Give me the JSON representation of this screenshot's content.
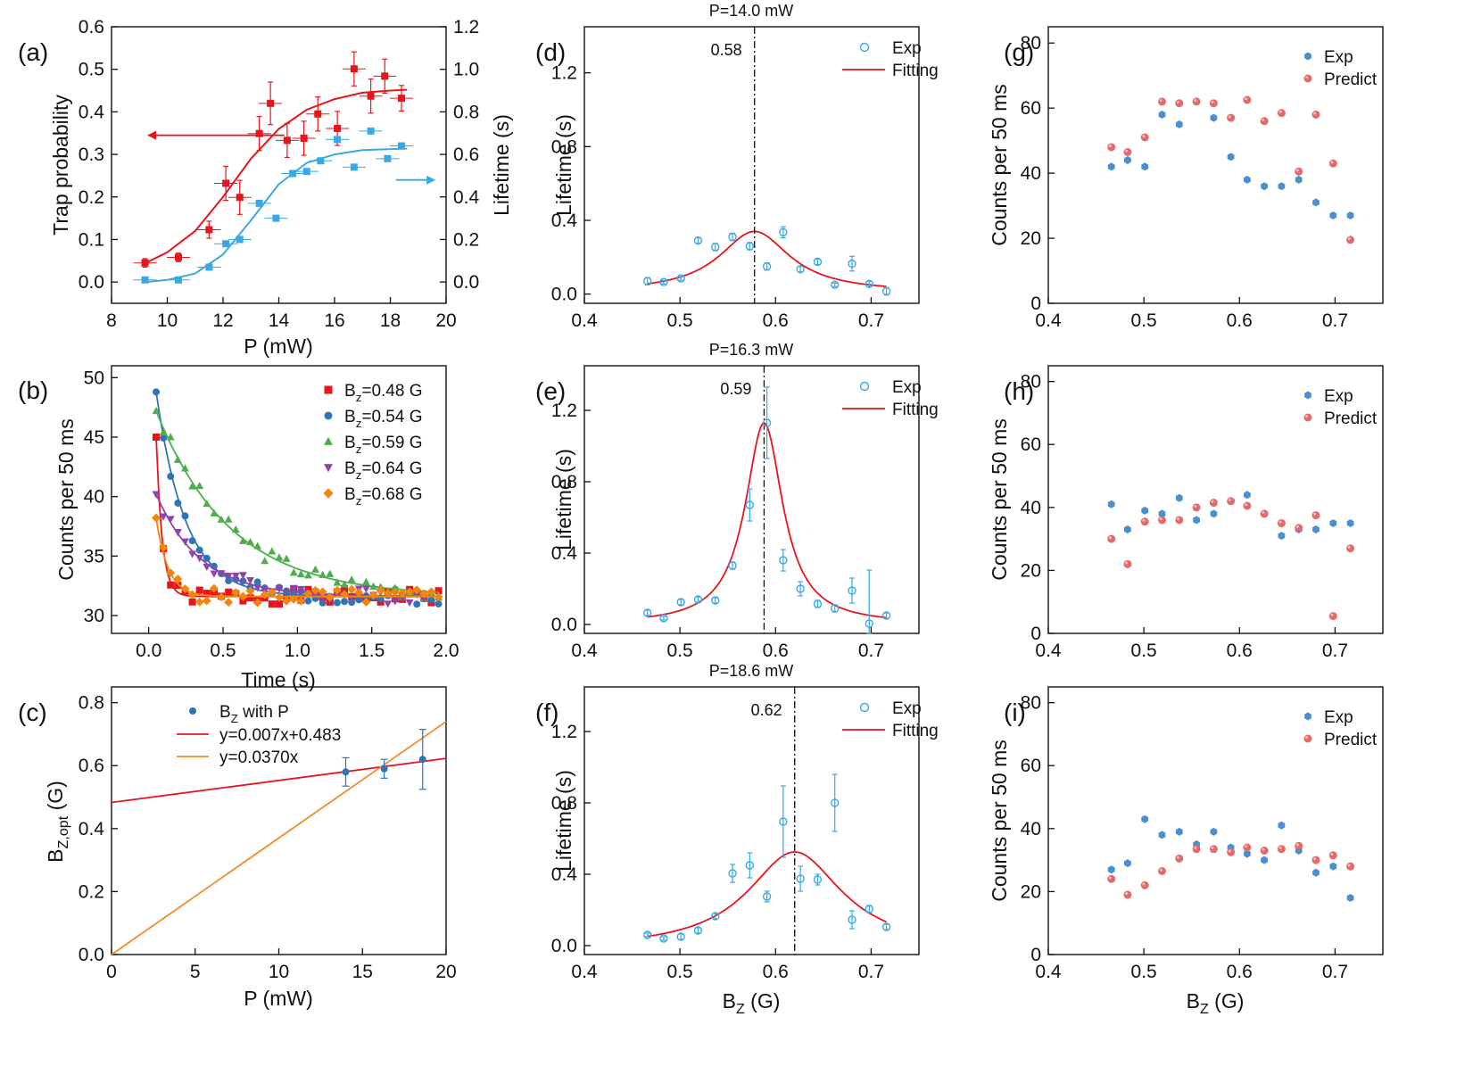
{
  "chart_data": [
    {
      "id": "a",
      "type": "scatter",
      "panel_label": "(a)",
      "xlabel": "P (mW)",
      "ylabel": "Trap probability",
      "y2label": "Lifetime (s)",
      "xlim": [
        8,
        20
      ],
      "ylim": [
        -0.05,
        0.6
      ],
      "y2lim": [
        -0.1,
        1.2
      ],
      "xticks": [
        8,
        10,
        12,
        14,
        16,
        18,
        20
      ],
      "yticks": [
        "0.0",
        "0.1",
        "0.2",
        "0.3",
        "0.4",
        "0.5",
        "0.6"
      ],
      "y2ticks": [
        "0.0",
        "0.2",
        "0.4",
        "0.6",
        "0.8",
        "1.0",
        "1.2"
      ],
      "series": [
        {
          "name": "Trap probability",
          "axis": "left",
          "color": "#e8141b",
          "marker": "square",
          "x": [
            9.2,
            10.4,
            11.5,
            12.1,
            12.6,
            13.3,
            13.7,
            14.3,
            14.9,
            15.4,
            16.1,
            16.7,
            17.3,
            17.8,
            18.4
          ],
          "y": [
            0.045,
            0.058,
            0.123,
            0.232,
            0.199,
            0.349,
            0.42,
            0.333,
            0.338,
            0.395,
            0.361,
            0.501,
            0.437,
            0.484,
            0.432
          ],
          "yerr": [
            0.01,
            0.01,
            0.02,
            0.04,
            0.04,
            0.04,
            0.05,
            0.04,
            0.04,
            0.04,
            0.04,
            0.04,
            0.04,
            0.04,
            0.03
          ],
          "fit_x": [
            9.2,
            10.0,
            11.0,
            12.0,
            13.0,
            14.0,
            15.0,
            16.0,
            17.0,
            18.0,
            18.6
          ],
          "fit_y": [
            0.044,
            0.07,
            0.12,
            0.2,
            0.29,
            0.36,
            0.405,
            0.43,
            0.445,
            0.45,
            0.452
          ]
        },
        {
          "name": "Lifetime",
          "axis": "right",
          "color": "#39a9e6",
          "marker": "square",
          "x": [
            9.2,
            10.4,
            11.5,
            12.1,
            12.6,
            13.3,
            13.9,
            14.5,
            15.0,
            15.5,
            16.1,
            16.7,
            17.3,
            17.9,
            18.4
          ],
          "y": [
            0.01,
            0.01,
            0.07,
            0.18,
            0.2,
            0.37,
            0.3,
            0.51,
            0.52,
            0.57,
            0.67,
            0.54,
            0.71,
            0.58,
            0.64
          ],
          "fit_x": [
            9.2,
            10.0,
            11.0,
            12.0,
            13.0,
            14.0,
            15.0,
            16.0,
            17.0,
            18.0,
            18.6
          ],
          "fit_y": [
            0.0,
            0.01,
            0.04,
            0.13,
            0.29,
            0.46,
            0.56,
            0.6,
            0.62,
            0.625,
            0.627
          ]
        }
      ]
    },
    {
      "id": "b",
      "type": "scatter",
      "panel_label": "(b)",
      "xlabel": "Time (s)",
      "ylabel": "Counts per 50 ms",
      "xlim": [
        -0.25,
        2.0
      ],
      "ylim": [
        28.5,
        51
      ],
      "xticks": [
        "0.0",
        "0.5",
        "1.0",
        "1.5",
        "2.0"
      ],
      "yticks": [
        30,
        35,
        40,
        45,
        50
      ],
      "series": [
        {
          "name": "B",
          "sub": "z",
          "suffix": "=0.48 G",
          "color": "#e8141b",
          "marker": "square",
          "start": 45.0,
          "tau": 0.04,
          "seed": 1
        },
        {
          "name": "B",
          "sub": "z",
          "suffix": "=0.54 G",
          "color": "#2f75b6",
          "marker": "circle",
          "start": 48.8,
          "tau": 0.2,
          "seed": 2
        },
        {
          "name": "B",
          "sub": "z",
          "suffix": "=0.59 G",
          "color": "#4cae4c",
          "marker": "triangle",
          "start": 47.2,
          "tau": 0.5,
          "seed": 3
        },
        {
          "name": "B",
          "sub": "z",
          "suffix": "=0.64 G",
          "color": "#8e44ad",
          "marker": "tridown",
          "start": 40.2,
          "tau": 0.3,
          "seed": 4
        },
        {
          "name": "B",
          "sub": "z",
          "suffix": "=0.68 G",
          "color": "#f5860d",
          "marker": "diamond",
          "start": 38.2,
          "tau": 0.08,
          "seed": 5
        }
      ],
      "asymptote": 31.6
    },
    {
      "id": "c",
      "type": "line",
      "panel_label": "(c)",
      "xlabel": "P (mW)",
      "ylabel": "B",
      "ylabel_sub": "Z,opt",
      "ylabel_suffix": " (G)",
      "xlim": [
        0,
        20
      ],
      "ylim": [
        0.0,
        0.85
      ],
      "xticks": [
        0,
        5,
        10,
        15,
        20
      ],
      "yticks": [
        "0.0",
        "0.2",
        "0.4",
        "0.6",
        "0.8"
      ],
      "points": {
        "name": "B",
        "sub": "Z",
        "suffix": " with P",
        "x": [
          14.0,
          16.3,
          18.6
        ],
        "y": [
          0.58,
          0.59,
          0.62
        ],
        "yerr": [
          0.045,
          0.03,
          0.095
        ],
        "color": "#2f75b6"
      },
      "lines": [
        {
          "name": "y=0.007x+0.483",
          "slope": 0.007,
          "intercept": 0.483,
          "color": "#e8141b"
        },
        {
          "name": "y=0.0370x",
          "slope": 0.037,
          "intercept": 0,
          "color": "#f58b2a"
        }
      ]
    },
    {
      "id": "d",
      "type": "scatter",
      "panel_label": "(d)",
      "title": "P=14.0 mW",
      "xlabel": "",
      "ylabel": "Lifetime (s)",
      "xlim": [
        0.4,
        0.75
      ],
      "ylim": [
        -0.05,
        1.45
      ],
      "xticks": [
        "0.4",
        "0.5",
        "0.6",
        "0.7"
      ],
      "yticks": [
        "0.0",
        "0.4",
        "0.8",
        "1.2"
      ],
      "vline": 0.578,
      "vline_label": "0.58",
      "legend": [
        "Exp",
        "Fitting"
      ],
      "x": [
        0.466,
        0.483,
        0.501,
        0.519,
        0.537,
        0.555,
        0.573,
        0.591,
        0.608,
        0.626,
        0.644,
        0.662,
        0.68,
        0.698,
        0.716
      ],
      "y": [
        0.07,
        0.065,
        0.085,
        0.29,
        0.255,
        0.31,
        0.26,
        0.15,
        0.335,
        0.135,
        0.175,
        0.05,
        0.165,
        0.055,
        0.015
      ],
      "yerr": [
        0.02,
        0.01,
        0.01,
        0.015,
        0.02,
        0.02,
        0.02,
        0.02,
        0.03,
        0.015,
        0.015,
        0.01,
        0.04,
        0.015,
        0.02
      ],
      "fit": {
        "x0": 0.578,
        "gamma": 0.045,
        "amp": 0.33,
        "base": 0.01
      }
    },
    {
      "id": "e",
      "type": "scatter",
      "panel_label": "(e)",
      "title": "P=16.3 mW",
      "xlabel": "",
      "ylabel": "Lifetime (s)",
      "xlim": [
        0.4,
        0.75
      ],
      "ylim": [
        -0.05,
        1.45
      ],
      "xticks": [
        "0.4",
        "0.5",
        "0.6",
        "0.7"
      ],
      "yticks": [
        "0.0",
        "0.4",
        "0.8",
        "1.2"
      ],
      "vline": 0.588,
      "vline_label": "0.59",
      "legend": [
        "Exp",
        "Fitting"
      ],
      "x": [
        0.466,
        0.483,
        0.501,
        0.519,
        0.537,
        0.555,
        0.573,
        0.591,
        0.608,
        0.626,
        0.644,
        0.662,
        0.68,
        0.698,
        0.716
      ],
      "y": [
        0.065,
        0.035,
        0.125,
        0.14,
        0.135,
        0.33,
        0.67,
        1.13,
        0.36,
        0.2,
        0.115,
        0.09,
        0.19,
        0.005,
        0.05
      ],
      "yerr": [
        0.015,
        0.01,
        0.015,
        0.015,
        0.015,
        0.02,
        0.09,
        0.2,
        0.06,
        0.04,
        0.02,
        0.02,
        0.07,
        0.3,
        0.015
      ],
      "fit": {
        "x0": 0.588,
        "gamma": 0.024,
        "amp": 1.13,
        "base": 0.0
      }
    },
    {
      "id": "f",
      "type": "scatter",
      "panel_label": "(f)",
      "title": "P=18.6 mW",
      "xlabel": "B",
      "xlabel_sub": "Z",
      "xlabel_suffix": " (G)",
      "ylabel": "Lifetime (s)",
      "xlim": [
        0.4,
        0.75
      ],
      "ylim": [
        -0.05,
        1.45
      ],
      "xticks": [
        "0.4",
        "0.5",
        "0.6",
        "0.7"
      ],
      "yticks": [
        "0.0",
        "0.4",
        "0.8",
        "1.2"
      ],
      "vline": 0.62,
      "vline_label": "0.62",
      "legend": [
        "Exp",
        "Fitting"
      ],
      "x": [
        0.466,
        0.483,
        0.501,
        0.519,
        0.537,
        0.555,
        0.573,
        0.591,
        0.608,
        0.626,
        0.644,
        0.662,
        0.68,
        0.698,
        0.716
      ],
      "y": [
        0.06,
        0.04,
        0.05,
        0.085,
        0.165,
        0.405,
        0.45,
        0.275,
        0.695,
        0.375,
        0.37,
        0.8,
        0.145,
        0.205,
        0.105
      ],
      "yerr": [
        0.01,
        0.01,
        0.015,
        0.015,
        0.015,
        0.05,
        0.07,
        0.03,
        0.2,
        0.07,
        0.03,
        0.16,
        0.05,
        0.02,
        0.015
      ],
      "fit": {
        "x0": 0.62,
        "gamma": 0.06,
        "amp": 0.545,
        "base": -0.02
      }
    },
    {
      "id": "g",
      "type": "scatter",
      "panel_label": "(g)",
      "xlabel": "",
      "ylabel": "Counts per 50 ms",
      "xlim": [
        0.4,
        0.75
      ],
      "ylim": [
        0,
        85
      ],
      "xticks": [
        "0.4",
        "0.5",
        "0.6",
        "0.7"
      ],
      "yticks": [
        0,
        20,
        40,
        60,
        80
      ],
      "legend": [
        "Exp",
        "Predict"
      ],
      "x": [
        0.466,
        0.483,
        0.501,
        0.519,
        0.537,
        0.555,
        0.573,
        0.591,
        0.608,
        0.626,
        0.644,
        0.662,
        0.68,
        0.698,
        0.716
      ],
      "exp": [
        42,
        44,
        42,
        58,
        55,
        62,
        57,
        45,
        38,
        36,
        36,
        38,
        31,
        27,
        27
      ],
      "predict": [
        48,
        46.5,
        51,
        62,
        61.5,
        62,
        61.5,
        57,
        62.5,
        56,
        58.5,
        40.5,
        58,
        43,
        19.5
      ]
    },
    {
      "id": "h",
      "type": "scatter",
      "panel_label": "(h)",
      "xlabel": "",
      "ylabel": "Counts per 50 ms",
      "xlim": [
        0.4,
        0.75
      ],
      "ylim": [
        0,
        85
      ],
      "xticks": [
        "0.4",
        "0.5",
        "0.6",
        "0.7"
      ],
      "yticks": [
        0,
        20,
        40,
        60,
        80
      ],
      "legend": [
        "Exp",
        "Predict"
      ],
      "x": [
        0.466,
        0.483,
        0.501,
        0.519,
        0.537,
        0.555,
        0.573,
        0.591,
        0.608,
        0.626,
        0.644,
        0.662,
        0.68,
        0.698,
        0.716
      ],
      "exp": [
        41,
        33,
        39,
        38,
        43,
        36,
        38,
        42,
        44,
        38,
        31,
        33,
        33,
        35,
        35
      ],
      "predict": [
        30,
        22,
        35.5,
        36,
        36,
        40,
        41.5,
        42,
        40.5,
        38,
        35,
        33.5,
        37.5,
        5.5,
        27
      ]
    },
    {
      "id": "i",
      "type": "scatter",
      "panel_label": "(i)",
      "xlabel": "B",
      "xlabel_sub": "Z",
      "xlabel_suffix": " (G)",
      "ylabel": "Counts per 50 ms",
      "xlim": [
        0.4,
        0.75
      ],
      "ylim": [
        0,
        85
      ],
      "xticks": [
        "0.4",
        "0.5",
        "0.6",
        "0.7"
      ],
      "yticks": [
        0,
        20,
        40,
        60,
        80
      ],
      "legend": [
        "Exp",
        "Predict"
      ],
      "x": [
        0.466,
        0.483,
        0.501,
        0.519,
        0.537,
        0.555,
        0.573,
        0.591,
        0.608,
        0.626,
        0.644,
        0.662,
        0.68,
        0.698,
        0.716
      ],
      "exp": [
        27,
        29,
        43,
        38,
        39,
        35,
        39,
        34,
        32,
        30,
        41,
        33,
        26,
        28,
        18
      ],
      "predict": [
        24,
        19,
        22,
        26.5,
        30.5,
        33.5,
        33.5,
        32.5,
        34,
        33,
        33.5,
        34.5,
        30,
        31.5,
        28
      ]
    }
  ]
}
